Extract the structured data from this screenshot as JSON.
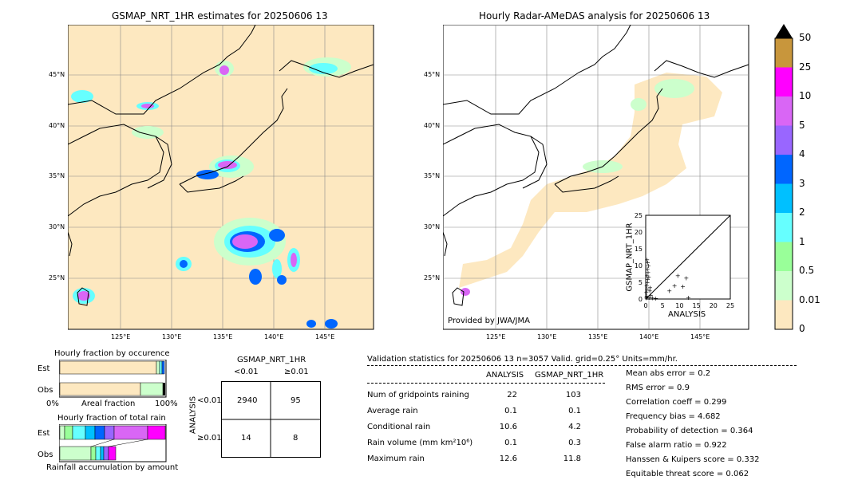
{
  "left_map": {
    "title": "GSMAP_NRT_1HR estimates for 20250606 13",
    "lon_labels": [
      "125°E",
      "130°E",
      "135°E",
      "140°E",
      "145°E"
    ],
    "lat_labels": [
      "45°N",
      "40°N",
      "35°N",
      "30°N",
      "25°N"
    ]
  },
  "right_map": {
    "title": "Hourly Radar-AMeDAS analysis for 20250606 13",
    "lon_labels": [
      "125°E",
      "130°E",
      "135°E",
      "140°E",
      "145°E"
    ],
    "lat_labels": [
      "45°N",
      "40°N",
      "35°N",
      "30°N",
      "25°N"
    ],
    "credit": "Provided by JWA/JMA"
  },
  "colorbar": {
    "labels": [
      "50",
      "25",
      "10",
      "5",
      "4",
      "3",
      "2",
      "1",
      "0.5",
      "0.01",
      "0"
    ],
    "colors": [
      "#c8963c",
      "#ff00ff",
      "#d966f5",
      "#9966ff",
      "#0066ff",
      "#00c0ff",
      "#66ffff",
      "#99ff99",
      "#ccffcc",
      "#fde8c0"
    ]
  },
  "occurrence": {
    "title": "Hourly fraction by occurence",
    "row_labels": [
      "Est",
      "Obs"
    ],
    "axis_left": "0%",
    "axis_mid": "Areal fraction",
    "axis_right": "100%"
  },
  "total_rain": {
    "title": "Hourly fraction of total rain",
    "row_labels": [
      "Est",
      "Obs"
    ],
    "footer": "Rainfall accumulation by amount"
  },
  "contingency": {
    "title": "GSMAP_NRT_1HR",
    "col_labels": [
      "<0.01",
      "≥0.01"
    ],
    "side_label": "ANALYSIS",
    "row_labels": [
      "<0.01",
      "≥0.01"
    ],
    "cells": [
      [
        "2940",
        "95"
      ],
      [
        "14",
        "8"
      ]
    ]
  },
  "validation": {
    "header": "Validation statistics for 20250606 13  n=3057 Valid. grid=0.25° Units=mm/hr.",
    "col_headers": [
      "ANALYSIS",
      "GSMAP_NRT_1HR"
    ],
    "rows": [
      {
        "label": "Num of gridpoints raining",
        "analysis": "22",
        "gsmap": "103"
      },
      {
        "label": "Average rain",
        "analysis": "0.1",
        "gsmap": "0.1"
      },
      {
        "label": "Conditional rain",
        "analysis": "10.6",
        "gsmap": "4.2"
      },
      {
        "label": "Rain volume (mm km²10⁶)",
        "analysis": "0.1",
        "gsmap": "0.3"
      },
      {
        "label": "Maximum rain",
        "analysis": "12.6",
        "gsmap": "11.8"
      }
    ],
    "scores": [
      "Mean abs error =    0.2",
      "RMS error =    0.9",
      "Correlation coeff =  0.299",
      "Frequency bias =  4.682",
      "Probability of detection =  0.364",
      "False alarm ratio =  0.922",
      "Hanssen & Kuipers score =  0.332",
      "Equitable threat score =  0.062"
    ]
  },
  "chart_data": {
    "type": "scatter",
    "title": "",
    "xlabel": "ANALYSIS",
    "ylabel": "GSMAP_NRT_1HR",
    "xlim": [
      0,
      25
    ],
    "ylim": [
      0,
      25
    ],
    "ticks": [
      "0",
      "5",
      "10",
      "15",
      "20",
      "25"
    ],
    "points": [
      {
        "x": 0.2,
        "y": 0.3
      },
      {
        "x": 0.3,
        "y": 1.0
      },
      {
        "x": 0.2,
        "y": 2.0
      },
      {
        "x": 0.4,
        "y": 3.0
      },
      {
        "x": 0.3,
        "y": 4.0
      },
      {
        "x": 0.5,
        "y": 5.0
      },
      {
        "x": 0.6,
        "y": 6.0
      },
      {
        "x": 0.4,
        "y": 7.0
      },
      {
        "x": 0.7,
        "y": 8.0
      },
      {
        "x": 0.5,
        "y": 9.0
      },
      {
        "x": 0.8,
        "y": 10.0
      },
      {
        "x": 0.6,
        "y": 11.0
      },
      {
        "x": 0.4,
        "y": 11.8
      },
      {
        "x": 1.0,
        "y": 0.5
      },
      {
        "x": 1.5,
        "y": 1.2
      },
      {
        "x": 2.0,
        "y": 0.4
      },
      {
        "x": 1.2,
        "y": 2.5
      },
      {
        "x": 3.0,
        "y": 0.2
      },
      {
        "x": 0.9,
        "y": 6.5
      },
      {
        "x": 1.3,
        "y": 3.5
      },
      {
        "x": 7.0,
        "y": 2.5
      },
      {
        "x": 8.5,
        "y": 4.0
      },
      {
        "x": 9.5,
        "y": 7.0
      },
      {
        "x": 11.0,
        "y": 3.8
      },
      {
        "x": 12.0,
        "y": 6.3
      },
      {
        "x": 12.6,
        "y": 0.5
      }
    ]
  }
}
